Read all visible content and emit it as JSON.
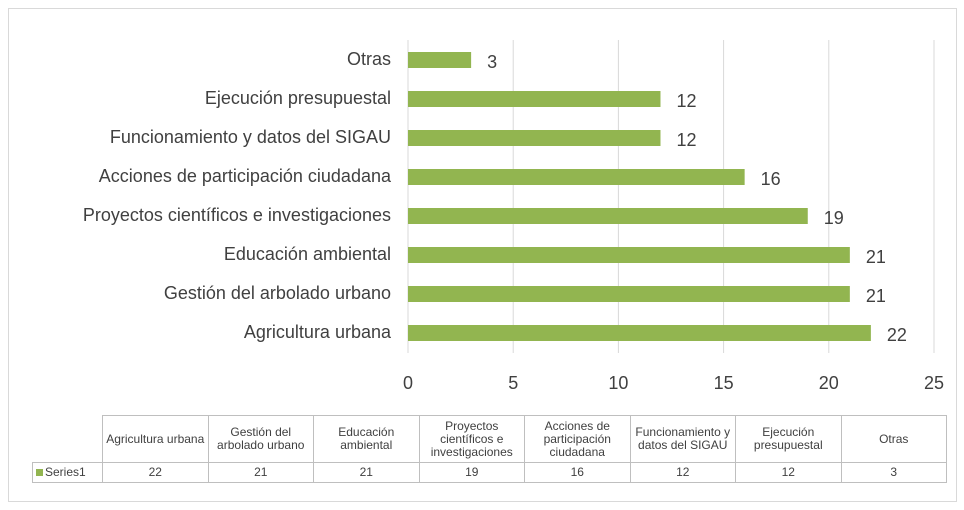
{
  "chart_data": {
    "type": "barh",
    "categories": [
      "Agricultura urbana",
      "Gestión del arbolado urbano",
      "Educación ambiental",
      "Proyectos científicos e investigaciones",
      "Acciones de participación ciudadana",
      "Funcionamiento y datos del SIGAU",
      "Ejecución presupuestal",
      "Otras"
    ],
    "series": [
      {
        "name": "Series1",
        "color": "#92b550",
        "values": [
          22,
          21,
          21,
          19,
          16,
          12,
          12,
          3
        ]
      }
    ],
    "xlim": [
      0,
      25
    ],
    "xticks": [
      0,
      5,
      10,
      15,
      20,
      25
    ],
    "grid": true,
    "data_table": true
  }
}
